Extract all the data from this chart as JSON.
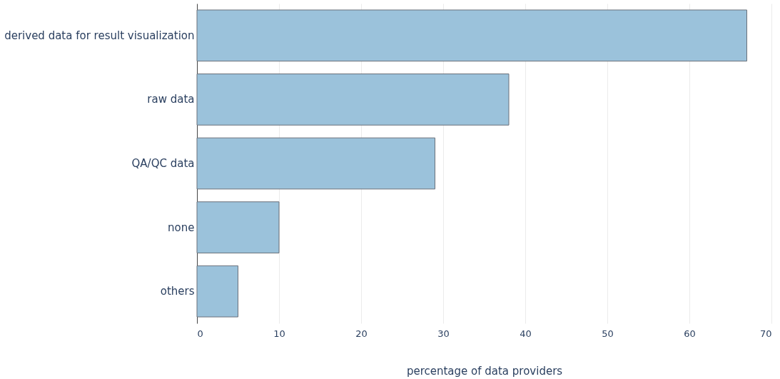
{
  "chart_data": {
    "type": "bar",
    "orientation": "horizontal",
    "xlabel": "percentage of data providers",
    "categories": [
      "derived data for result visualization",
      "raw data",
      "QA/QC data",
      "none",
      "others"
    ],
    "values": [
      67,
      38,
      29,
      10,
      5
    ],
    "color": "#9bc2db",
    "xlim": [
      0,
      70
    ],
    "xticks": [
      0,
      10,
      20,
      30,
      40,
      50,
      60,
      70
    ],
    "grid": "x"
  }
}
